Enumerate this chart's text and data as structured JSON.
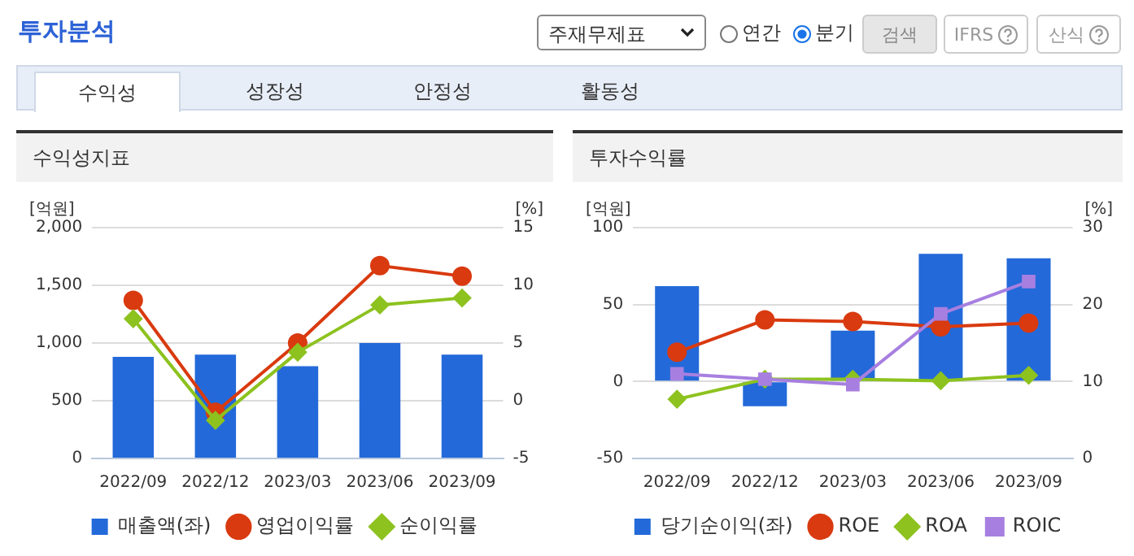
{
  "chart_data": [
    {
      "type": "other",
      "title": "투자분석",
      "annotations": [
        "주재무제표",
        "연간",
        "분기",
        "검색",
        "IFRS",
        "산식",
        "수익성",
        "성장성",
        "안정성",
        "활동성"
      ]
    },
    {
      "type": "bar",
      "title": "수익성지표",
      "ylabel": "[억원]",
      "y2label": "[%]",
      "categories": [
        "2022/09",
        "2022/12",
        "2023/03",
        "2023/06",
        "2023/09"
      ],
      "ylim": [
        0,
        2000
      ],
      "yticks": [
        0,
        {
          "value": 500,
          "label": "500"
        },
        {
          "value": 1000,
          "label": "1,000"
        },
        {
          "value": 1500,
          "label": "1,500"
        },
        {
          "value": 2000,
          "label": "2,000"
        }
      ],
      "y2lim": [
        -5,
        15
      ],
      "y2ticks": [
        -5,
        0,
        5,
        10,
        15
      ],
      "grid": "y",
      "legend": "bottom",
      "series": [
        {
          "name": "매출액(좌)",
          "type": "bar",
          "color": "#2369d9",
          "values": [
            880,
            900,
            800,
            1000,
            900
          ]
        },
        {
          "name": "영업이익률",
          "type": "line",
          "axis": "y2",
          "marker": "circle",
          "color": "#d93a0f",
          "values": [
            8.7,
            -1.0,
            5.0,
            11.7,
            10.8
          ]
        },
        {
          "name": "순이익률",
          "type": "line",
          "axis": "y2",
          "marker": "diamond",
          "color": "#8dc21f",
          "values": [
            7.1,
            -1.7,
            4.2,
            8.3,
            8.9
          ]
        }
      ]
    },
    {
      "type": "bar",
      "title": "투자수익률",
      "ylabel": "[억원]",
      "y2label": "[%]",
      "categories": [
        "2022/09",
        "2022/12",
        "2023/03",
        "2023/06",
        "2023/09"
      ],
      "ylim": [
        -50,
        100
      ],
      "yticks": [
        -50,
        0,
        50,
        100
      ],
      "y2lim": [
        0,
        30
      ],
      "y2ticks": [
        0,
        10,
        20,
        30
      ],
      "grid": "y",
      "legend": "bottom",
      "series": [
        {
          "name": "당기순이익(좌)",
          "type": "bar",
          "color": "#2369d9",
          "values": [
            62,
            -16,
            33,
            83,
            80
          ]
        },
        {
          "name": "ROE",
          "type": "line",
          "axis": "y2",
          "marker": "circle",
          "color": "#d93a0f",
          "values": [
            13.8,
            18.0,
            17.8,
            17.1,
            17.6
          ]
        },
        {
          "name": "ROA",
          "type": "line",
          "axis": "y2",
          "marker": "diamond",
          "color": "#8dc21f",
          "values": [
            7.7,
            10.3,
            10.3,
            10.1,
            10.8
          ]
        },
        {
          "name": "ROIC",
          "type": "line",
          "axis": "y2",
          "marker": "square",
          "color": "#a77fe0",
          "values": [
            11.0,
            10.3,
            9.6,
            18.8,
            23.0
          ]
        }
      ]
    }
  ]
}
